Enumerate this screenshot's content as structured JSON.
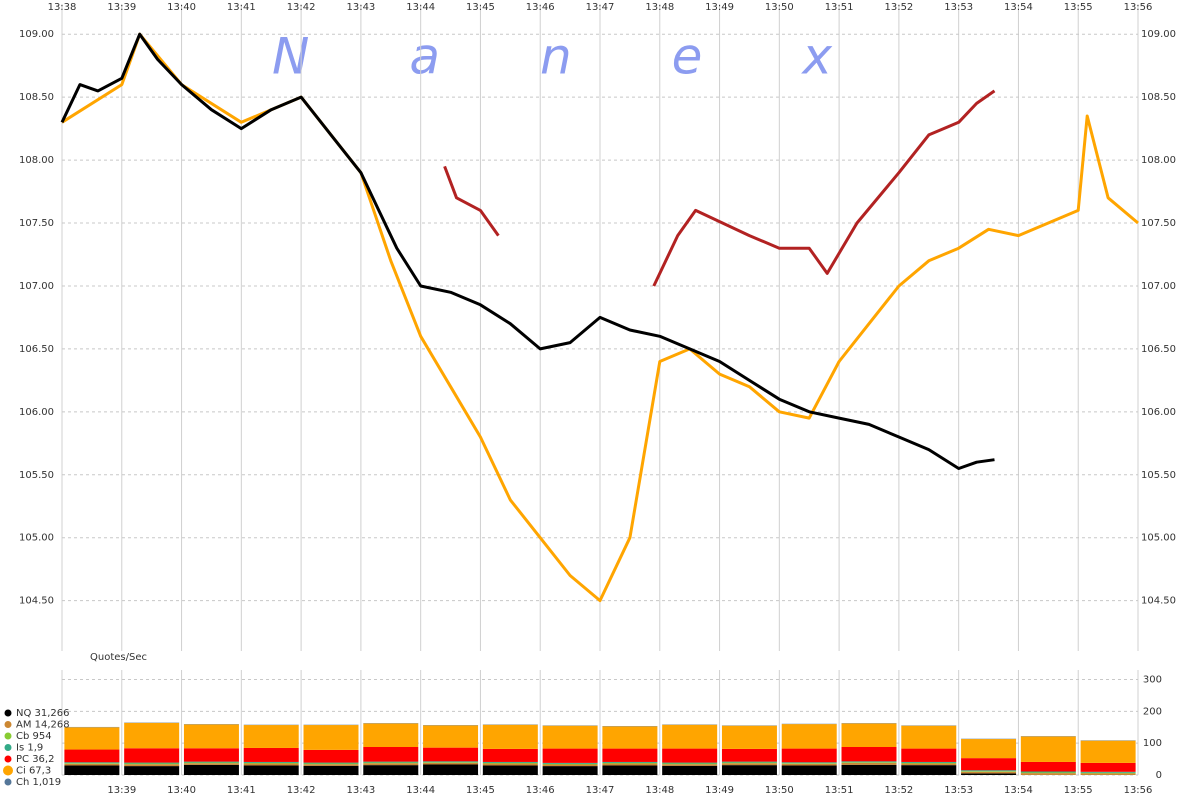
{
  "chart_data": [
    {
      "type": "line",
      "watermark": "N a n e x",
      "xlim": [
        38,
        56
      ],
      "xticks": [
        {
          "value": 38,
          "label": "13:38"
        },
        {
          "value": 39,
          "label": "13:39"
        },
        {
          "value": 40,
          "label": "13:40"
        },
        {
          "value": 41,
          "label": "13:41"
        },
        {
          "value": 42,
          "label": "13:42"
        },
        {
          "value": 43,
          "label": "13:43"
        },
        {
          "value": 44,
          "label": "13:44"
        },
        {
          "value": 45,
          "label": "13:45"
        },
        {
          "value": 46,
          "label": "13:46"
        },
        {
          "value": 47,
          "label": "13:47"
        },
        {
          "value": 48,
          "label": "13:48"
        },
        {
          "value": 49,
          "label": "13:49"
        },
        {
          "value": 50,
          "label": "13:50"
        },
        {
          "value": 51,
          "label": "13:51"
        },
        {
          "value": 52,
          "label": "13:52"
        },
        {
          "value": 53,
          "label": "13:53"
        },
        {
          "value": 54,
          "label": "13:54"
        },
        {
          "value": 55,
          "label": "13:55"
        },
        {
          "value": 56,
          "label": "13:56"
        }
      ],
      "ylim": [
        104.1,
        109.24
      ],
      "yticks": [
        {
          "value": 104.5,
          "label": "104.50"
        },
        {
          "value": 105,
          "label": "105.00"
        },
        {
          "value": 105.5,
          "label": "105.50"
        },
        {
          "value": 106,
          "label": "106.00"
        },
        {
          "value": 106.5,
          "label": "106.50"
        },
        {
          "value": 107,
          "label": "107.00"
        },
        {
          "value": 107.5,
          "label": "107.50"
        },
        {
          "value": 108,
          "label": "108.00"
        },
        {
          "value": 108.5,
          "label": "108.50"
        },
        {
          "value": 109,
          "label": "109.00"
        }
      ],
      "grid": true,
      "series": [
        {
          "color": "#b22222",
          "x": [
            44.4,
            44.6,
            45,
            45.3,
            46,
            47.9,
            48.3,
            48.6,
            49.5,
            50,
            50.5,
            50.8,
            51.3,
            52,
            52.5,
            53,
            53.3,
            53.6
          ],
          "values": [
            107.95,
            107.7,
            107.6,
            107.4,
            null,
            107.0,
            107.4,
            107.6,
            107.4,
            107.3,
            107.3,
            107.1,
            107.5,
            107.9,
            108.2,
            108.3,
            108.45,
            108.55
          ]
        },
        {
          "color": "#ffa500",
          "x": [
            38,
            39,
            39.3,
            40,
            41,
            42,
            43,
            43.5,
            44,
            44.5,
            45,
            45.5,
            46,
            46.5,
            47,
            47.5,
            48,
            48.5,
            49,
            49.5,
            50,
            50.5,
            51,
            51.5,
            52,
            52.5,
            53,
            53.5,
            54,
            54.5,
            55,
            55.15,
            55.5,
            56
          ],
          "values": [
            108.3,
            108.6,
            109.0,
            108.6,
            108.3,
            108.5,
            107.9,
            107.2,
            106.6,
            106.2,
            105.8,
            105.3,
            105.0,
            104.7,
            104.5,
            105.0,
            106.4,
            106.5,
            106.3,
            106.2,
            106.0,
            105.95,
            106.4,
            106.7,
            107.0,
            107.2,
            107.3,
            107.45,
            107.4,
            107.5,
            107.6,
            108.35,
            107.7,
            107.5
          ]
        },
        {
          "color": "#000000",
          "x": [
            38,
            38.3,
            38.6,
            39,
            39.3,
            39.6,
            40,
            40.5,
            41,
            41.5,
            42,
            42.5,
            43,
            43.3,
            43.6,
            44,
            44.5,
            45,
            45.5,
            46,
            46.5,
            47,
            47.5,
            48,
            48.5,
            49,
            49.5,
            50,
            50.5,
            51,
            51.5,
            52,
            52.5,
            53,
            53.3,
            53.6
          ],
          "values": [
            108.3,
            108.6,
            108.55,
            108.65,
            109.0,
            108.8,
            108.6,
            108.4,
            108.25,
            108.4,
            108.5,
            108.2,
            107.9,
            107.6,
            107.3,
            107.0,
            106.95,
            106.85,
            106.7,
            106.5,
            106.55,
            106.75,
            106.65,
            106.6,
            106.5,
            106.4,
            106.25,
            106.1,
            106.0,
            105.95,
            105.9,
            105.8,
            105.7,
            105.55,
            105.6,
            105.62
          ]
        }
      ]
    },
    {
      "type": "stacked-bar",
      "ylabel": "Quotes/Sec",
      "x": [
        38.5,
        39.5,
        40.5,
        41.5,
        42.5,
        43.5,
        44.5,
        45.5,
        46.5,
        47.5,
        48.5,
        49.5,
        50.5,
        51.5,
        52.5,
        53.5,
        54.5,
        55.5
      ],
      "ylim": [
        0,
        330
      ],
      "yticks": [
        0,
        100,
        200,
        300
      ],
      "series": [
        {
          "name": "NQ 31,266",
          "color": "#000000",
          "values": [
            30,
            28,
            32,
            30,
            29,
            31,
            33,
            30,
            28,
            30,
            29,
            31,
            30,
            32,
            31,
            5,
            0,
            0
          ]
        },
        {
          "name": "AM 14,268",
          "color": "#cc8833",
          "values": [
            5,
            6,
            5,
            6,
            5,
            6,
            5,
            6,
            5,
            6,
            5,
            6,
            5,
            6,
            5,
            5,
            6,
            5
          ]
        },
        {
          "name": "Cb 954",
          "color": "#88cc33",
          "values": [
            2,
            2,
            2,
            2,
            2,
            2,
            2,
            2,
            2,
            2,
            2,
            2,
            2,
            2,
            2,
            2,
            2,
            2
          ]
        },
        {
          "name": "Is 1,9",
          "color": "#33aa88",
          "values": [
            3,
            3,
            3,
            3,
            3,
            3,
            3,
            3,
            3,
            3,
            3,
            3,
            3,
            3,
            3,
            3,
            3,
            3
          ]
        },
        {
          "name": "PC 36,2",
          "color": "#ff0000",
          "values": [
            40,
            45,
            42,
            44,
            40,
            46,
            43,
            41,
            45,
            42,
            44,
            40,
            43,
            45,
            42,
            38,
            30,
            28
          ]
        },
        {
          "name": "Ci 67,3",
          "color": "#ffa500",
          "values": [
            70,
            80,
            75,
            72,
            78,
            74,
            70,
            76,
            72,
            70,
            75,
            73,
            77,
            74,
            72,
            60,
            80,
            70
          ]
        },
        {
          "name": "Ch 1,019",
          "color": "#557799",
          "values": [
            1,
            1,
            1,
            1,
            1,
            1,
            1,
            1,
            1,
            1,
            1,
            1,
            1,
            1,
            1,
            1,
            1,
            1
          ]
        }
      ]
    }
  ]
}
